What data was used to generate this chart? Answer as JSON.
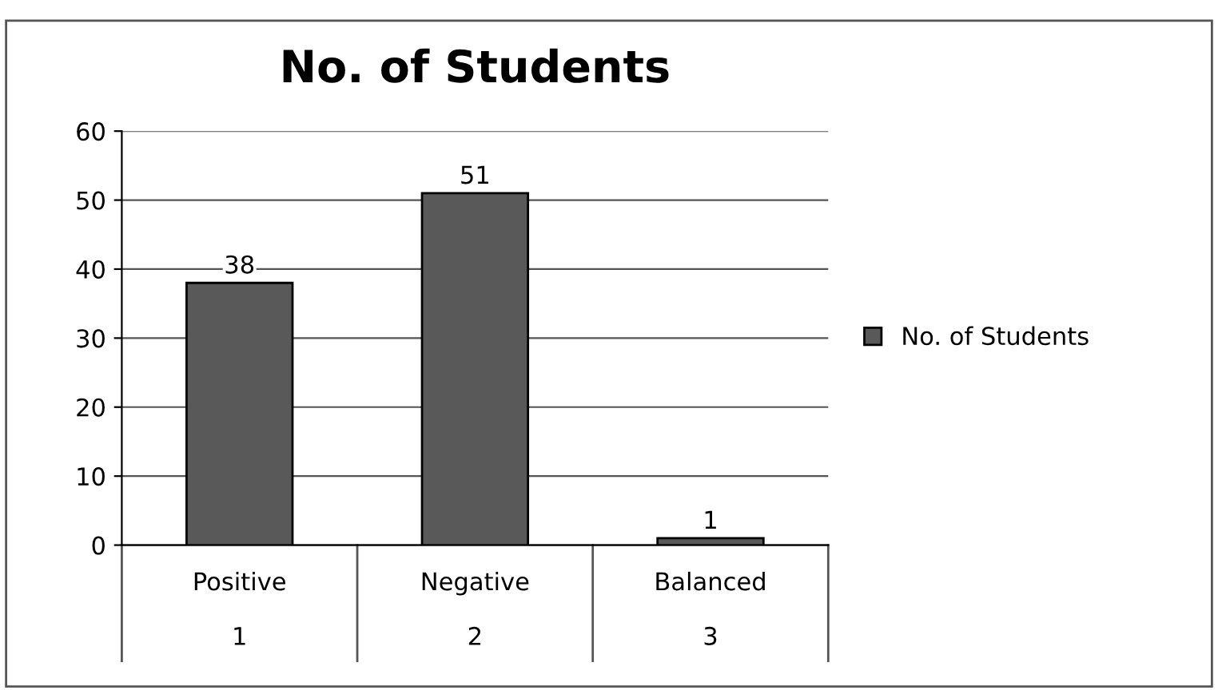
{
  "chart_data": {
    "type": "bar",
    "title": "No. of Students",
    "categories": [
      "Positive\n\n1",
      "Negative\n\n2",
      "Balanced\n\n3"
    ],
    "series": [
      {
        "name": "No. of Students",
        "color": "#595959",
        "values": [
          38,
          51,
          1
        ]
      }
    ],
    "ylim": [
      0,
      60
    ],
    "yticks": [
      0,
      10,
      20,
      30,
      40,
      50,
      60
    ],
    "grid": "y",
    "legend": "right",
    "data_labels": true
  }
}
